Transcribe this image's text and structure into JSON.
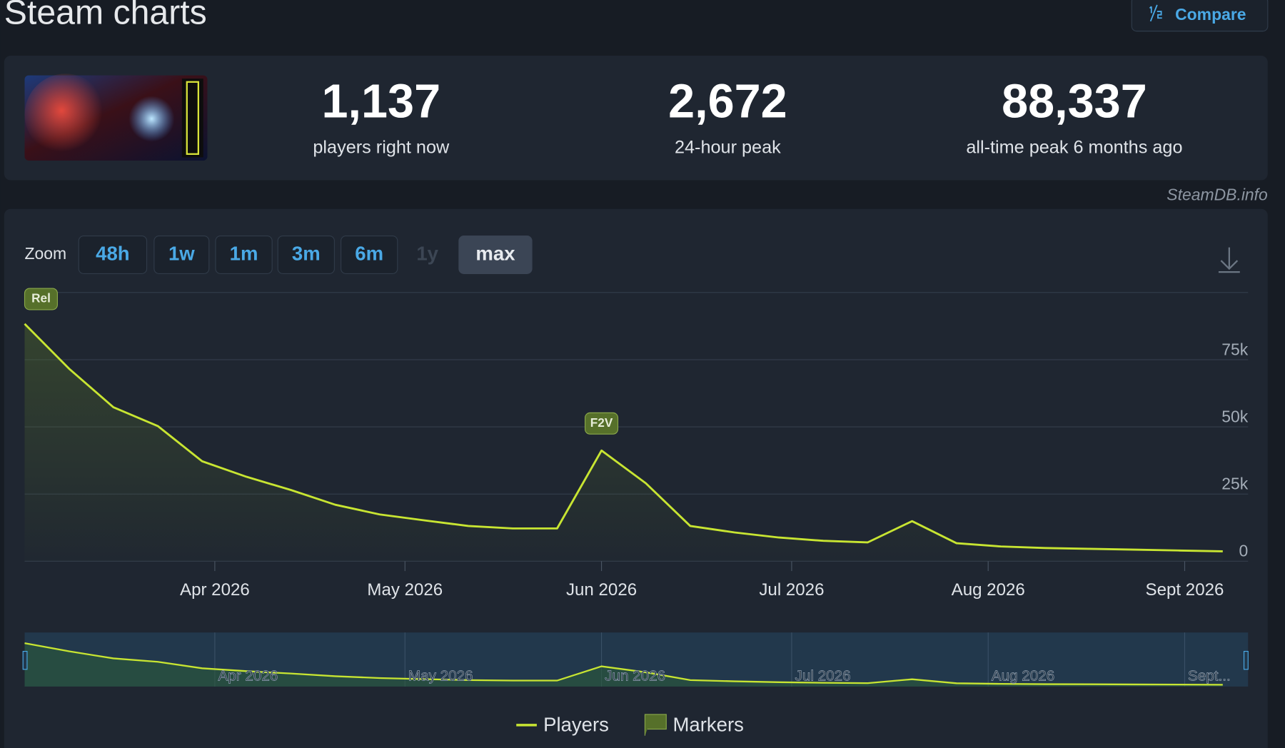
{
  "header": {
    "title": "Steam charts",
    "compare": "Compare",
    "credit": "SteamDB.info"
  },
  "stats": [
    {
      "value": "1,137",
      "label": "players right now"
    },
    {
      "value": "2,672",
      "label": "24-hour peak"
    },
    {
      "value": "88,337",
      "label": "all-time peak 6 months ago"
    }
  ],
  "zoom": {
    "label": "Zoom",
    "buttons": [
      "48h",
      "1w",
      "1m",
      "3m",
      "6m",
      "1y",
      "max"
    ],
    "disabled": "1y",
    "active": "max"
  },
  "navigator": {
    "labels": [
      "Apr 2026",
      "May 2026",
      "Jun 2026",
      "Jul 2026",
      "Aug 2026",
      "Sept..."
    ]
  },
  "chart_data": {
    "type": "line",
    "x": [
      61,
      68,
      75,
      82,
      89,
      96,
      103,
      110,
      117,
      124,
      131,
      138,
      145,
      152,
      159,
      166,
      173,
      180,
      187,
      194,
      201,
      208,
      215,
      222,
      229,
      236,
      243,
      250
    ],
    "series": [
      {
        "name": "Players",
        "color": "#c8e532",
        "values": [
          88337,
          71650,
          57300,
          50300,
          37200,
          31400,
          26500,
          21000,
          17400,
          15200,
          13100,
          12200,
          12200,
          41200,
          29000,
          13100,
          10700,
          8800,
          7600,
          7000,
          14900,
          6700,
          5500,
          4900,
          4600,
          4300,
          4000,
          3700
        ]
      }
    ],
    "markers_name": "Markers",
    "marker_color": "#56702a",
    "markers": [
      {
        "x": 61,
        "label": "Rel"
      },
      {
        "x": 152,
        "label": "F2V"
      }
    ],
    "xlim": [
      61,
      254
    ],
    "xticks": [
      {
        "value": 91,
        "label": "Apr 2026"
      },
      {
        "value": 121,
        "label": "May 2026"
      },
      {
        "value": 152,
        "label": "Jun 2026"
      },
      {
        "value": 182,
        "label": "Jul 2026"
      },
      {
        "value": 213,
        "label": "Aug 2026"
      },
      {
        "value": 244,
        "label": "Sept 2026"
      }
    ],
    "ylim": [
      0,
      100000
    ],
    "yticks": [
      0,
      {
        "value": 25000,
        "label": "25k"
      },
      {
        "value": 50000,
        "label": "50k"
      },
      {
        "value": 75000,
        "label": "75k"
      }
    ],
    "grid": true
  }
}
